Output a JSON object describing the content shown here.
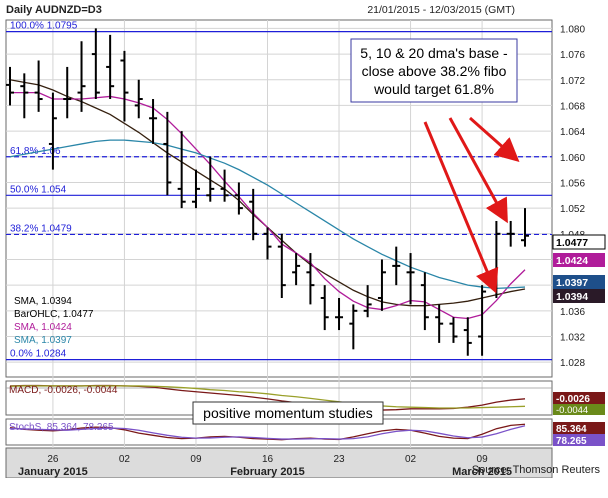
{
  "header": {
    "instrument": "Daily AUDNZD=D3",
    "date_range": "21/01/2015 - 12/03/2015 (GMT)"
  },
  "annotations": {
    "callout_line1": "5, 10 & 20 dma's base -",
    "callout_line2": "close above 38.2% fibo",
    "callout_line3": "would target 61.8%",
    "momentum_note": "positive momentum studies"
  },
  "source": "Source: Thomson Reuters",
  "colors": {
    "background": "#ffffff",
    "grid": "#d4d4d4",
    "fib_line": "#1e1ed8",
    "bars": "#000000",
    "sma_fast": "#b01c9a",
    "sma_mid": "#35200f",
    "sma_slow": "#2a86a8",
    "arrow": "#e01818",
    "macd_line": "#7a1818",
    "macd_signal": "#9aa02a",
    "stoch_k": "#7a1818",
    "stoch_d": "#7a52c8"
  },
  "chart_data": [
    {
      "type": "line",
      "title": "Daily AUDNZD=D3",
      "subtitle": "21/01/2015 - 12/03/2015 (GMT)",
      "x": [
        "21/01",
        "22/01",
        "23/01",
        "26/01",
        "27/01",
        "28/01",
        "29/01",
        "30/01",
        "02/02",
        "03/02",
        "04/02",
        "05/02",
        "06/02",
        "09/02",
        "10/02",
        "11/02",
        "12/02",
        "13/02",
        "16/02",
        "17/02",
        "18/02",
        "19/02",
        "20/02",
        "23/02",
        "24/02",
        "25/02",
        "26/02",
        "27/02",
        "02/03",
        "03/03",
        "04/03",
        "05/03",
        "06/03",
        "09/03",
        "10/03",
        "11/03",
        "12/03"
      ],
      "x_ticks": [
        {
          "x": "26/01",
          "label": "26"
        },
        {
          "x": "02/02",
          "label": "02"
        },
        {
          "x": "09/02",
          "label": "09"
        },
        {
          "x": "16/02",
          "label": "16"
        },
        {
          "x": "23/02",
          "label": "23"
        },
        {
          "x": "02/03",
          "label": "02"
        },
        {
          "x": "09/03",
          "label": "09"
        }
      ],
      "month_labels": [
        {
          "x": "26/01",
          "label": "January 2015"
        },
        {
          "x": "16/02",
          "label": "February 2015"
        },
        {
          "x": "09/03",
          "label": "March 2015"
        }
      ],
      "ylim": [
        1.026,
        1.081
      ],
      "y_ticks": [
        1.028,
        1.032,
        1.036,
        1.04,
        1.044,
        1.048,
        1.052,
        1.056,
        1.06,
        1.064,
        1.068,
        1.072,
        1.076,
        1.08
      ],
      "ohlc": [
        {
          "o": 1.0712,
          "h": 1.074,
          "l": 1.068,
          "c": 1.07
        },
        {
          "o": 1.071,
          "h": 1.073,
          "l": 1.066,
          "c": 1.07
        },
        {
          "o": 1.07,
          "h": 1.075,
          "l": 1.067,
          "c": 1.069
        },
        {
          "o": 1.062,
          "h": 1.07,
          "l": 1.058,
          "c": 1.066
        },
        {
          "o": 1.069,
          "h": 1.074,
          "l": 1.066,
          "c": 1.069
        },
        {
          "o": 1.07,
          "h": 1.078,
          "l": 1.067,
          "c": 1.071
        },
        {
          "o": 1.076,
          "h": 1.08,
          "l": 1.069,
          "c": 1.07
        },
        {
          "o": 1.074,
          "h": 1.079,
          "l": 1.069,
          "c": 1.071
        },
        {
          "o": 1.075,
          "h": 1.0765,
          "l": 1.0655,
          "c": 1.07
        },
        {
          "o": 1.068,
          "h": 1.072,
          "l": 1.066,
          "c": 1.069
        },
        {
          "o": 1.066,
          "h": 1.069,
          "l": 1.062,
          "c": 1.066
        },
        {
          "o": 1.062,
          "h": 1.067,
          "l": 1.054,
          "c": 1.056
        },
        {
          "o": 1.055,
          "h": 1.064,
          "l": 1.052,
          "c": 1.053
        },
        {
          "o": 1.053,
          "h": 1.058,
          "l": 1.052,
          "c": 1.055
        },
        {
          "o": 1.054,
          "h": 1.06,
          "l": 1.053,
          "c": 1.055
        },
        {
          "o": 1.055,
          "h": 1.058,
          "l": 1.053,
          "c": 1.054
        },
        {
          "o": 1.054,
          "h": 1.056,
          "l": 1.051,
          "c": 1.052
        },
        {
          "o": 1.053,
          "h": 1.055,
          "l": 1.047,
          "c": 1.048
        },
        {
          "o": 1.048,
          "h": 1.049,
          "l": 1.044,
          "c": 1.046
        },
        {
          "o": 1.046,
          "h": 1.048,
          "l": 1.038,
          "c": 1.04
        },
        {
          "o": 1.042,
          "h": 1.045,
          "l": 1.04,
          "c": 1.043
        },
        {
          "o": 1.042,
          "h": 1.045,
          "l": 1.037,
          "c": 1.04
        },
        {
          "o": 1.038,
          "h": 1.04,
          "l": 1.033,
          "c": 1.035
        },
        {
          "o": 1.035,
          "h": 1.038,
          "l": 1.033,
          "c": 1.035
        },
        {
          "o": 1.034,
          "h": 1.037,
          "l": 1.03,
          "c": 1.036
        },
        {
          "o": 1.036,
          "h": 1.04,
          "l": 1.035,
          "c": 1.037
        },
        {
          "o": 1.038,
          "h": 1.044,
          "l": 1.036,
          "c": 1.042
        },
        {
          "o": 1.043,
          "h": 1.046,
          "l": 1.04,
          "c": 1.043
        },
        {
          "o": 1.042,
          "h": 1.045,
          "l": 1.037,
          "c": 1.042
        },
        {
          "o": 1.04,
          "h": 1.042,
          "l": 1.033,
          "c": 1.035
        },
        {
          "o": 1.035,
          "h": 1.037,
          "l": 1.031,
          "c": 1.034
        },
        {
          "o": 1.034,
          "h": 1.035,
          "l": 1.031,
          "c": 1.032
        },
        {
          "o": 1.033,
          "h": 1.035,
          "l": 1.029,
          "c": 1.031
        },
        {
          "o": 1.032,
          "h": 1.04,
          "l": 1.029,
          "c": 1.039
        },
        {
          "o": 1.041,
          "h": 1.05,
          "l": 1.038,
          "c": 1.048
        },
        {
          "o": 1.048,
          "h": 1.05,
          "l": 1.046,
          "c": 1.048
        },
        {
          "o": 1.047,
          "h": 1.052,
          "l": 1.046,
          "c": 1.0477
        }
      ],
      "series": [
        {
          "name": "SMA",
          "value_label": "SMA, 1.0394",
          "values": [
            1.072,
            1.0716,
            1.0712,
            1.0704,
            1.0694,
            1.0686,
            1.0676,
            1.0666,
            1.0652,
            1.0638,
            1.0622,
            1.0606,
            1.0592,
            1.0578,
            1.0564,
            1.055,
            1.0532,
            1.051,
            1.049,
            1.047,
            1.045,
            1.0432,
            1.0418,
            1.0405,
            1.0392,
            1.0382,
            1.0374,
            1.037,
            1.0368,
            1.0368,
            1.037,
            1.0372,
            1.0375,
            1.038,
            1.0385,
            1.039,
            1.0394
          ]
        },
        {
          "name": "BarOHLC",
          "value_label": "BarOHLC, 1.0477",
          "values": [
            1.07,
            1.07,
            1.069,
            1.066,
            1.069,
            1.071,
            1.07,
            1.071,
            1.07,
            1.069,
            1.066,
            1.056,
            1.053,
            1.055,
            1.055,
            1.054,
            1.052,
            1.048,
            1.046,
            1.04,
            1.043,
            1.04,
            1.035,
            1.035,
            1.036,
            1.037,
            1.042,
            1.043,
            1.042,
            1.035,
            1.034,
            1.032,
            1.031,
            1.039,
            1.048,
            1.048,
            1.0477
          ]
        },
        {
          "name": "SMA",
          "value_label": "SMA, 1.0424",
          "values": [
            1.07,
            1.07,
            1.07,
            1.069,
            1.069,
            1.069,
            1.0692,
            1.0694,
            1.069,
            1.0684,
            1.0676,
            1.0658,
            1.0636,
            1.0612,
            1.0588,
            1.0562,
            1.0538,
            1.0512,
            1.049,
            1.0464,
            1.045,
            1.0435,
            1.041,
            1.039,
            1.0375,
            1.0365,
            1.0362,
            1.0368,
            1.0376,
            1.0374,
            1.0362,
            1.035,
            1.0348,
            1.0354,
            1.0376,
            1.0402,
            1.0424
          ]
        },
        {
          "name": "SMA",
          "value_label": "SMA, 1.0397",
          "values": [
            1.06,
            1.0604,
            1.0608,
            1.0612,
            1.0616,
            1.062,
            1.0624,
            1.0626,
            1.0626,
            1.0624,
            1.0622,
            1.0618,
            1.0612,
            1.0606,
            1.0598,
            1.059,
            1.058,
            1.0568,
            1.0556,
            1.0542,
            1.0528,
            1.0514,
            1.05,
            1.0486,
            1.0472,
            1.046,
            1.0448,
            1.0438,
            1.0428,
            1.042,
            1.0412,
            1.0406,
            1.04,
            1.0397,
            1.0395,
            1.0396,
            1.0397
          ]
        }
      ],
      "fibonacci": [
        {
          "label": "100.0% 1.0795",
          "value": 1.0795
        },
        {
          "label": "61.8% 1.06",
          "value": 1.06
        },
        {
          "label": "50.0% 1.054",
          "value": 1.054
        },
        {
          "label": "38.2% 1.0479",
          "value": 1.0479
        },
        {
          "label": "0.0% 1.0284",
          "value": 1.0284
        }
      ],
      "right_labels": [
        {
          "text": "1.0477",
          "value": 1.0477
        },
        {
          "text": "1.0424",
          "value": 1.0424
        },
        {
          "text": "1.0397",
          "value": 1.0397
        },
        {
          "text": "1.0394",
          "value": 1.0394
        }
      ]
    },
    {
      "type": "line",
      "title": "MACD, -0.0026, -0.0044",
      "series": [
        {
          "name": "MACD",
          "values": [
            0.0005,
            0.0006,
            0.0006,
            0.0005,
            0.0005,
            0.0005,
            0.0006,
            0.0006,
            0.0005,
            0.0004,
            0.0002,
            -0.0002,
            -0.0006,
            -0.0009,
            -0.0012,
            -0.0015,
            -0.0018,
            -0.0022,
            -0.0026,
            -0.0031,
            -0.0035,
            -0.0039,
            -0.0044,
            -0.0048,
            -0.0051,
            -0.0053,
            -0.0053,
            -0.0052,
            -0.005,
            -0.005,
            -0.005,
            -0.0049,
            -0.0046,
            -0.0041,
            -0.0034,
            -0.0029,
            -0.0026
          ]
        },
        {
          "name": "Signal",
          "values": [
            0.0004,
            0.0005,
            0.0005,
            0.0005,
            0.0005,
            0.0005,
            0.0005,
            0.0005,
            0.0005,
            0.0005,
            0.0004,
            0.0003,
            0.0001,
            -0.0001,
            -0.0004,
            -0.0006,
            -0.0009,
            -0.0011,
            -0.0014,
            -0.0018,
            -0.0021,
            -0.0025,
            -0.0029,
            -0.0033,
            -0.0037,
            -0.004,
            -0.0043,
            -0.0045,
            -0.0046,
            -0.0047,
            -0.0048,
            -0.0048,
            -0.0048,
            -0.0047,
            -0.0046,
            -0.0045,
            -0.0044
          ]
        }
      ],
      "right_labels": [
        "-0.0026",
        "-0.0044"
      ]
    },
    {
      "type": "line",
      "title": "StochS, 85.364, 78.265",
      "series": [
        {
          "name": "StochS %K",
          "values": [
            70,
            62,
            58,
            55,
            60,
            68,
            72,
            70,
            60,
            45,
            35,
            25,
            20,
            22,
            28,
            30,
            26,
            20,
            18,
            15,
            20,
            22,
            18,
            16,
            28,
            42,
            55,
            62,
            58,
            45,
            30,
            22,
            20,
            40,
            65,
            80,
            85.364
          ]
        },
        {
          "name": "StochS %D",
          "values": [
            66,
            64,
            62,
            60,
            58,
            62,
            66,
            68,
            66,
            58,
            46,
            35,
            26,
            22,
            23,
            26,
            28,
            25,
            21,
            18,
            18,
            19,
            20,
            18,
            20,
            28,
            42,
            53,
            58,
            55,
            44,
            32,
            24,
            27,
            42,
            62,
            78.265
          ]
        }
      ],
      "right_labels": [
        "85.364",
        "78.265"
      ]
    }
  ]
}
